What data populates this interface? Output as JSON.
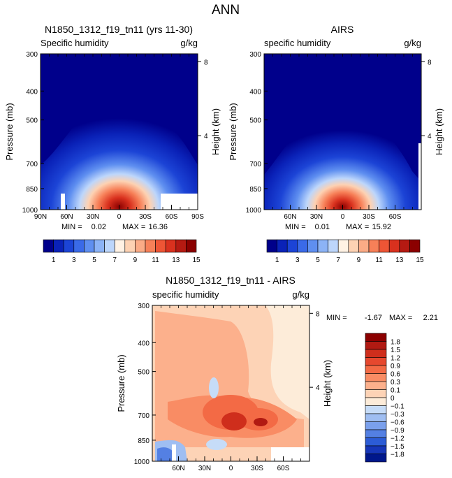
{
  "chart_data": {
    "type": "contour-panel",
    "title": "ANN",
    "panels": [
      {
        "id": "model",
        "title": "N1850_1312_f19_tn11 (yrs 11-30)",
        "variable": "Specific humidity",
        "units": "g/kg",
        "ylabel": "Pressure (mb)",
        "ylabel_right": "Height (km)",
        "pressure_ticks": [
          "300",
          "400",
          "500",
          "700",
          "850",
          "1000"
        ],
        "height_ticks": [
          "8",
          "4"
        ],
        "lat_ticks": [
          "90N",
          "60N",
          "30N",
          "0",
          "30S",
          "60S",
          "90S"
        ],
        "min_label": "MIN =",
        "min_value": "0.02",
        "max_label": "MAX =",
        "max_value": "16.36",
        "peak": 16.36
      },
      {
        "id": "airs",
        "title": "AIRS",
        "variable": "specific humidity",
        "units": "g/kg",
        "ylabel": "Pressure (mb)",
        "ylabel_right": "Height (km)",
        "pressure_ticks": [
          "300",
          "400",
          "500",
          "700",
          "850",
          "1000"
        ],
        "height_ticks": [
          "8",
          "4"
        ],
        "lat_ticks": [
          "60N",
          "30N",
          "0",
          "30S",
          "60S"
        ],
        "min_label": "MIN =",
        "min_value": "0.01",
        "max_label": "MAX =",
        "max_value": "15.92",
        "peak": 15.92
      },
      {
        "id": "diff",
        "title": "N1850_1312_f19_tn11 - AIRS",
        "variable": "specific humidity",
        "units": "g/kg",
        "ylabel": "Pressure (mb)",
        "ylabel_right": "Height (km)",
        "pressure_ticks": [
          "300",
          "400",
          "500",
          "700",
          "850",
          "1000"
        ],
        "height_ticks": [
          "8",
          "4"
        ],
        "lat_ticks": [
          "60N",
          "30N",
          "0",
          "30S",
          "60S"
        ],
        "min_label": "MIN =",
        "min_value": "-1.67",
        "max_label": "MAX =",
        "max_value": "2.21"
      }
    ],
    "colorbar_abs": {
      "labels": [
        "1",
        "3",
        "5",
        "7",
        "9",
        "11",
        "13",
        "15"
      ],
      "colors": [
        "#00008b",
        "#0a22b8",
        "#1c44d6",
        "#3a6ae8",
        "#5f8ff0",
        "#8cb3f6",
        "#bdd6fb",
        "#fff2e4",
        "#fdd2b3",
        "#fbab86",
        "#f78058",
        "#ee5535",
        "#d9311e",
        "#b51a12",
        "#8b0000"
      ]
    },
    "colorbar_diff": {
      "labels": [
        "1.8",
        "1.5",
        "1.2",
        "0.9",
        "0.6",
        "0.3",
        "0.1",
        "0",
        "−0.1",
        "−0.3",
        "−0.6",
        "−0.9",
        "−1.2",
        "−1.5",
        "−1.8"
      ],
      "colors": [
        "#8b0000",
        "#b11a12",
        "#cf2e1c",
        "#e6482e",
        "#f36a45",
        "#f98c64",
        "#fcb08c",
        "#fdd3b6",
        "#fdecd9",
        "#c6dcf8",
        "#9fbef2",
        "#7aa0ec",
        "#5480e3",
        "#2c5cd6",
        "#1636b8",
        "#00178b"
      ]
    }
  }
}
